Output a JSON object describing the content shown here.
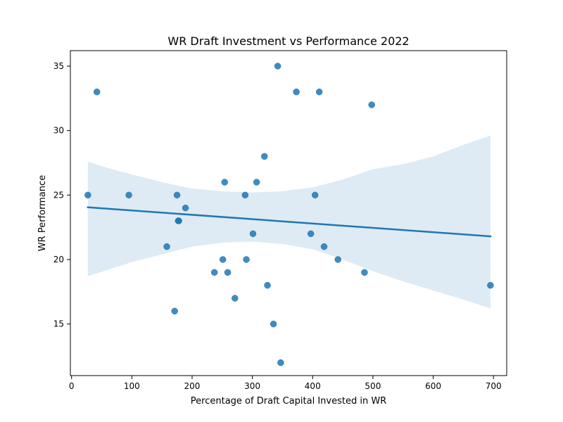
{
  "chart_data": {
    "type": "scatter",
    "title": "WR Draft Investment vs Performance 2022",
    "xlabel": "Percentage of Draft Capital Invested in WR",
    "ylabel": "WR Performance",
    "xlim": [
      -2,
      722
    ],
    "ylim": [
      11,
      36.2
    ],
    "x_ticks": [
      0,
      100,
      200,
      300,
      400,
      500,
      600,
      700
    ],
    "y_ticks": [
      15,
      20,
      25,
      30,
      35
    ],
    "grid": false,
    "colors": {
      "points": "#1f77b4",
      "regression_line": "#1f77b4",
      "confidence_band": "#1f77b4"
    },
    "points": [
      {
        "x": 27,
        "y": 25
      },
      {
        "x": 42,
        "y": 33
      },
      {
        "x": 95,
        "y": 25
      },
      {
        "x": 158,
        "y": 21
      },
      {
        "x": 171,
        "y": 16
      },
      {
        "x": 175,
        "y": 25
      },
      {
        "x": 177,
        "y": 23
      },
      {
        "x": 178,
        "y": 23
      },
      {
        "x": 189,
        "y": 24
      },
      {
        "x": 237,
        "y": 19
      },
      {
        "x": 251,
        "y": 20
      },
      {
        "x": 254,
        "y": 26
      },
      {
        "x": 259,
        "y": 19
      },
      {
        "x": 271,
        "y": 17
      },
      {
        "x": 288,
        "y": 25
      },
      {
        "x": 290,
        "y": 20
      },
      {
        "x": 301,
        "y": 22
      },
      {
        "x": 307,
        "y": 26
      },
      {
        "x": 320,
        "y": 28
      },
      {
        "x": 325,
        "y": 18
      },
      {
        "x": 335,
        "y": 15
      },
      {
        "x": 342,
        "y": 35
      },
      {
        "x": 347,
        "y": 12
      },
      {
        "x": 373,
        "y": 33
      },
      {
        "x": 397,
        "y": 22
      },
      {
        "x": 404,
        "y": 25
      },
      {
        "x": 411,
        "y": 33
      },
      {
        "x": 419,
        "y": 21
      },
      {
        "x": 442,
        "y": 20
      },
      {
        "x": 486,
        "y": 19
      },
      {
        "x": 498,
        "y": 32
      },
      {
        "x": 695,
        "y": 18
      }
    ],
    "regression": {
      "x": [
        27,
        695
      ],
      "y": [
        24.05,
        21.8
      ]
    },
    "confidence_band": {
      "x": [
        27,
        60,
        100,
        150,
        200,
        250,
        300,
        350,
        400,
        450,
        500,
        550,
        600,
        650,
        695
      ],
      "upper": [
        27.6,
        27.1,
        26.6,
        26.0,
        25.5,
        25.3,
        25.2,
        25.3,
        25.6,
        26.2,
        27.0,
        27.4,
        28.0,
        28.9,
        29.6
      ],
      "lower": [
        18.7,
        19.2,
        19.8,
        20.4,
        21.0,
        21.3,
        21.4,
        21.2,
        20.8,
        20.0,
        19.1,
        18.3,
        17.6,
        16.9,
        16.2
      ]
    }
  }
}
